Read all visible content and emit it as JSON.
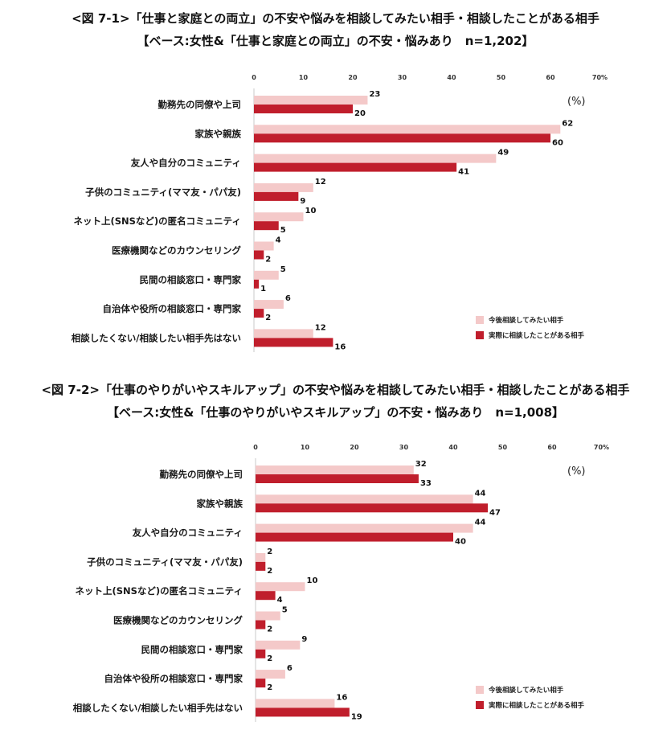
{
  "colors": {
    "future": "#f4c9c9",
    "actual": "#c01e2c"
  },
  "chart_data": [
    {
      "type": "bar",
      "orientation": "horizontal",
      "title": "<図 7-1>「仕事と家庭との両立」の不安や悩みを相談してみたい相手・相談したことがある相手",
      "subtitle": "【ベース:女性&「仕事と家庭との両立」の不安・悩みあり　n=1,202】",
      "unit": "(%)",
      "xlim": [
        0,
        70
      ],
      "ticks": [
        "0",
        "10",
        "20",
        "30",
        "40",
        "50",
        "60",
        "70%"
      ],
      "legend_position": "bottom-right",
      "categories": [
        "勤務先の同僚や上司",
        "家族や親族",
        "友人や自分のコミュニティ",
        "子供のコミュニティ(ママ友・パパ友)",
        "ネット上(SNSなど)の匿名コミュニティ",
        "医療機関などのカウンセリング",
        "民間の相談窓口・専門家",
        "自治体や役所の相談窓口・専門家",
        "相談したくない/相談したい相手先はない"
      ],
      "series": [
        {
          "name": "今後相談してみたい相手",
          "values": [
            23,
            62,
            49,
            12,
            10,
            4,
            5,
            6,
            12
          ]
        },
        {
          "name": "実際に相談したことがある相手",
          "values": [
            20,
            60,
            41,
            9,
            5,
            2,
            1,
            2,
            16
          ]
        }
      ]
    },
    {
      "type": "bar",
      "orientation": "horizontal",
      "title": "<図 7-2>「仕事のやりがいやスキルアップ」の不安や悩みを相談してみたい相手・相談したことがある相手",
      "subtitle": "【ベース:女性&「仕事のやりがいやスキルアップ」の不安・悩みあり　n=1,008】",
      "unit": "(%)",
      "xlim": [
        0,
        70
      ],
      "ticks": [
        "0",
        "10",
        "20",
        "30",
        "40",
        "50",
        "60",
        "70%"
      ],
      "legend_position": "bottom-right",
      "categories": [
        "勤務先の同僚や上司",
        "家族や親族",
        "友人や自分のコミュニティ",
        "子供のコミュニティ(ママ友・パパ友)",
        "ネット上(SNSなど)の匿名コミュニティ",
        "医療機関などのカウンセリング",
        "民間の相談窓口・専門家",
        "自治体や役所の相談窓口・専門家",
        "相談したくない/相談したい相手先はない"
      ],
      "series": [
        {
          "name": "今後相談してみたい相手",
          "values": [
            32,
            44,
            44,
            2,
            10,
            5,
            9,
            6,
            16
          ]
        },
        {
          "name": "実際に相談したことがある相手",
          "values": [
            33,
            47,
            40,
            2,
            4,
            2,
            2,
            2,
            19
          ]
        }
      ]
    }
  ]
}
